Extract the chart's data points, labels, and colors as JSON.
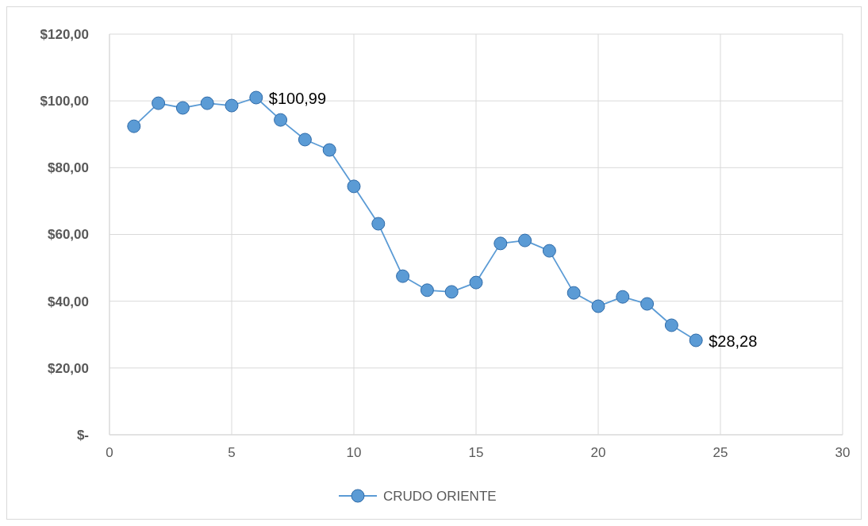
{
  "chart_data": {
    "type": "line",
    "x": [
      1,
      2,
      3,
      4,
      5,
      6,
      7,
      8,
      9,
      10,
      11,
      12,
      13,
      14,
      15,
      16,
      17,
      18,
      19,
      20,
      21,
      22,
      23,
      24
    ],
    "series": [
      {
        "name": "CRUDO ORIENTE",
        "color": "#5b9bd5",
        "values": [
          92.4,
          99.3,
          97.9,
          99.3,
          98.6,
          100.99,
          94.3,
          88.4,
          85.3,
          74.4,
          63.2,
          47.5,
          43.3,
          42.8,
          45.6,
          57.3,
          58.2,
          55.1,
          42.5,
          38.5,
          41.3,
          39.2,
          32.8,
          28.28
        ],
        "value_labels": [
          null,
          null,
          null,
          null,
          null,
          "$100,99",
          null,
          null,
          null,
          null,
          null,
          null,
          null,
          null,
          null,
          null,
          null,
          null,
          null,
          null,
          null,
          null,
          null,
          "$28,28"
        ]
      }
    ],
    "xlim": [
      0,
      30
    ],
    "xticks": [
      0,
      5,
      10,
      15,
      20,
      25,
      30
    ],
    "ylim": [
      0,
      120
    ],
    "yticks": [
      {
        "value": 0,
        "label": "$-"
      },
      {
        "value": 20,
        "label": "$20,00"
      },
      {
        "value": 40,
        "label": "$40,00"
      },
      {
        "value": 60,
        "label": "$60,00"
      },
      {
        "value": 80,
        "label": "$80,00"
      },
      {
        "value": 100,
        "label": "$100,00"
      },
      {
        "value": 120,
        "label": "$120,00"
      }
    ],
    "grid": true,
    "legend": "bottom",
    "marker": "circle",
    "line_style": "solid"
  }
}
